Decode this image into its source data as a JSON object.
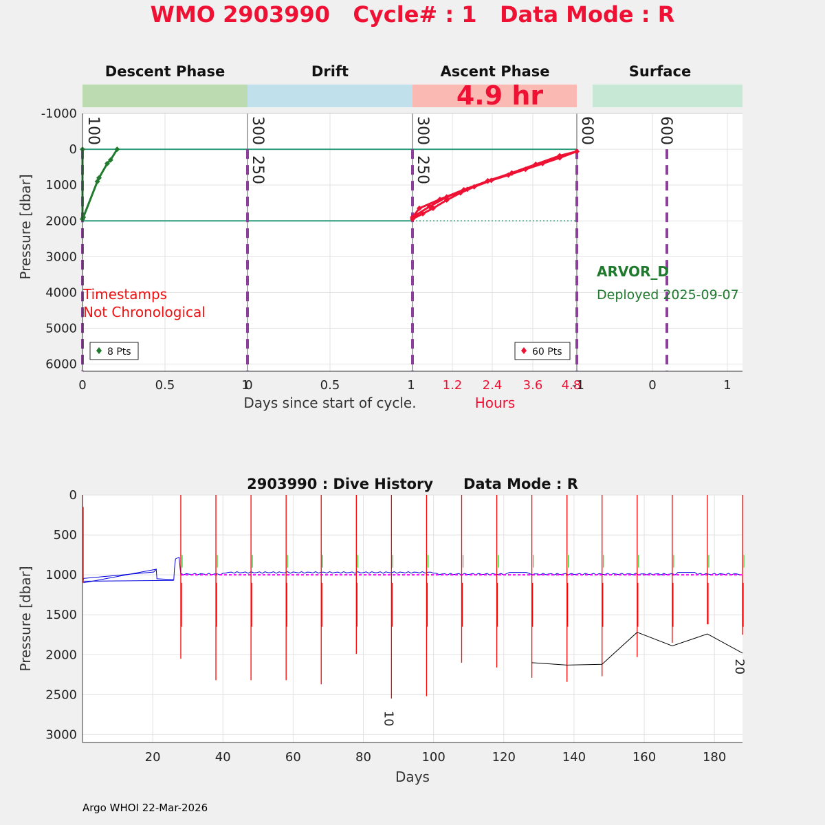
{
  "header": {
    "title": "WMO 2903990   Cycle# : 1   Data Mode : R"
  },
  "footer": {
    "text": "Argo WHOI 22-Mar-2026"
  },
  "colors": {
    "descent": "#1f7a2e",
    "ascent": "#ee1133",
    "phase_line": "#2a9a7a",
    "marker": "#8b3f9b",
    "drift_blue": "#0000dd",
    "park_magenta": "#ff00ff",
    "history_red": "#ff0000",
    "history_green": "#00cc00",
    "band_descent": "#bcdbb0",
    "band_drift": "#c0e0ec",
    "band_ascent": "#fbb9b3",
    "band_surface": "#c8e8d6"
  },
  "chart_data": [
    {
      "type": "line",
      "name": "cycle-profile",
      "panels": [
        "Descent Phase",
        "Drift",
        "Ascent Phase",
        "Surface"
      ],
      "ylabel": "Pressure [dbar]",
      "xlabel": "Days since start of cycle.",
      "xlabel_hours": "Hours",
      "ylim": [
        6200,
        -1000
      ],
      "y_reversed": true,
      "yticks": [
        "-1000",
        "0",
        "1000",
        "2000",
        "3000",
        "4000",
        "5000",
        "6000"
      ],
      "descent_xticks": [
        "0",
        "0.5",
        "1"
      ],
      "drift_xticks": [
        "0",
        "0.5",
        "1"
      ],
      "ascent_xticks": [
        "1.2",
        "2.4",
        "3.6",
        "4.8"
      ],
      "ascent_edge_tick": "-1",
      "surface_xticks": [
        "0",
        "1"
      ],
      "ascent_duration": "4.9 hr",
      "annotation_lines": [
        "Timestamps",
        "Not Chronological"
      ],
      "float_model": "ARVOR_D",
      "deployed": "Deployed 2025-09-07",
      "descent_legend": "8 Pts",
      "ascent_legend": "60 Pts",
      "marker_labels": [
        "100",
        "300",
        "250",
        "300",
        "250",
        "600",
        "600"
      ],
      "reference_pressures": [
        0,
        2000
      ],
      "descent_series": {
        "name": "descent",
        "x_days": [
          0,
          0,
          0.005,
          0.09,
          0.1,
          0.15,
          0.17,
          0.21
        ],
        "y_dbar": [
          0,
          1950,
          1900,
          900,
          800,
          400,
          300,
          0
        ]
      },
      "ascent_series": {
        "name": "ascent",
        "x_hours": [
          0,
          0.3,
          0.6,
          1.0,
          1.4,
          1.8,
          2.3,
          2.8,
          3.3,
          3.8,
          4.3,
          4.8,
          4.3,
          3.6,
          2.9,
          2.2,
          1.5,
          0.8,
          0.2,
          0,
          0.5,
          1.0,
          1.6,
          2.2,
          2.9,
          3.6,
          4.3,
          4.8
        ],
        "y_dbar": [
          1950,
          1800,
          1650,
          1420,
          1220,
          1050,
          870,
          720,
          560,
          400,
          240,
          60,
          200,
          420,
          660,
          890,
          1130,
          1400,
          1650,
          1900,
          1600,
          1330,
          1120,
          880,
          670,
          420,
          180,
          60
        ]
      }
    },
    {
      "type": "line",
      "name": "dive-history",
      "title": "2903990 : Dive History      Data Mode : R",
      "xlabel": "Days",
      "ylabel": "Pressure [dbar]",
      "xlim": [
        0,
        188
      ],
      "ylim": [
        3100,
        0
      ],
      "y_reversed": true,
      "xticks": [
        20,
        40,
        60,
        80,
        100,
        120,
        140,
        160,
        180
      ],
      "yticks": [
        0,
        500,
        1000,
        1500,
        2000,
        2500,
        3000
      ],
      "cycle_days": [
        0,
        28,
        38,
        48,
        58,
        68,
        78,
        88,
        98,
        108,
        118,
        128,
        138,
        148,
        158,
        168,
        178,
        188
      ],
      "cycle_max_depth": [
        150,
        2050,
        2320,
        2320,
        2320,
        2370,
        1990,
        2550,
        2520,
        2100,
        2160,
        2290,
        2340,
        2270,
        2030,
        1850,
        1620,
        1750
      ],
      "park_pressure": 1000,
      "cycle_labels": [
        {
          "text": "10",
          "day": 88,
          "pressure": 2800
        },
        {
          "text": "20",
          "day": 188,
          "pressure": 2150
        }
      ],
      "bottom_series": {
        "name": "grounding",
        "x": [
          128,
          138,
          148,
          158,
          168,
          178,
          188
        ],
        "y": [
          2100,
          2130,
          2120,
          1720,
          1890,
          1740,
          1980
        ]
      }
    }
  ]
}
